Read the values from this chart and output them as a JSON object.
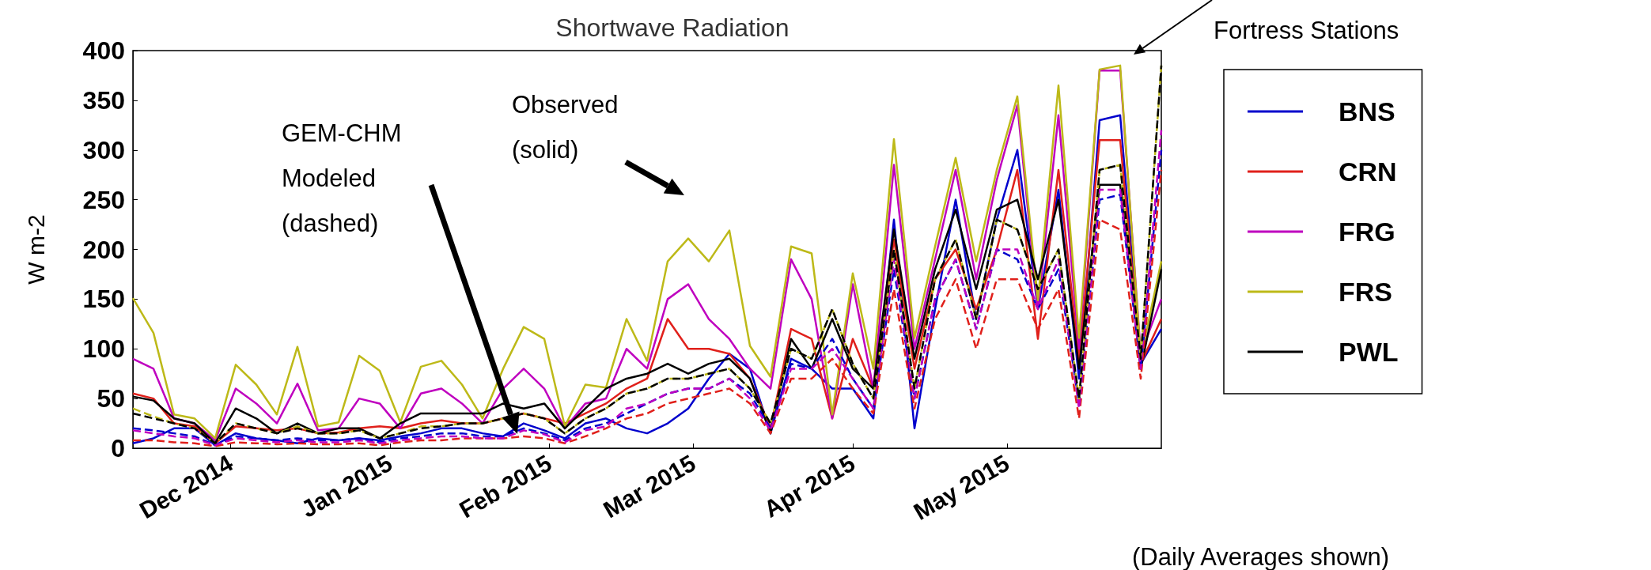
{
  "chart_data": {
    "type": "line",
    "title": "Shortwave Radiation",
    "ylabel": "W m-2",
    "annotations": [
      "GEM-CHM\nModeled\n(dashed)",
      "Observed\n(solid)",
      "Fortress Stations",
      "(Daily Averages shown)"
    ],
    "x": [
      "2014-11-12",
      "2014-11-16",
      "2014-11-20",
      "2014-11-24",
      "2014-11-28",
      "2014-12-02",
      "2014-12-06",
      "2014-12-10",
      "2014-12-14",
      "2014-12-18",
      "2014-12-22",
      "2014-12-26",
      "2014-12-30",
      "2015-01-03",
      "2015-01-07",
      "2015-01-11",
      "2015-01-15",
      "2015-01-19",
      "2015-01-23",
      "2015-01-27",
      "2015-01-31",
      "2015-02-04",
      "2015-02-08",
      "2015-02-12",
      "2015-02-16",
      "2015-02-20",
      "2015-02-24",
      "2015-02-28",
      "2015-03-04",
      "2015-03-08",
      "2015-03-12",
      "2015-03-16",
      "2015-03-20",
      "2015-03-24",
      "2015-03-28",
      "2015-04-01",
      "2015-04-05",
      "2015-04-09",
      "2015-04-13",
      "2015-04-17",
      "2015-04-21",
      "2015-04-25",
      "2015-04-29",
      "2015-05-03",
      "2015-05-07",
      "2015-05-11",
      "2015-05-15",
      "2015-05-19",
      "2015-05-23",
      "2015-05-27",
      "2015-05-31"
    ],
    "series": [
      {
        "name": "BNS",
        "color": "#0000cc",
        "line_style": "solid",
        "values": [
          5,
          10,
          20,
          20,
          3,
          15,
          10,
          8,
          5,
          10,
          8,
          10,
          8,
          12,
          15,
          20,
          20,
          15,
          12,
          25,
          18,
          10,
          25,
          30,
          20,
          15,
          25,
          40,
          70,
          95,
          80,
          15,
          90,
          80,
          60,
          60,
          30,
          230,
          20,
          140,
          250,
          130,
          230,
          300,
          140,
          260,
          70,
          330,
          335,
          85,
          120
        ]
      },
      {
        "name": "CRN",
        "color": "#e0201b",
        "line_style": "solid",
        "values": [
          55,
          50,
          25,
          22,
          5,
          22,
          20,
          18,
          20,
          15,
          16,
          20,
          22,
          20,
          25,
          28,
          25,
          25,
          30,
          35,
          30,
          25,
          35,
          45,
          60,
          70,
          130,
          100,
          100,
          95,
          70,
          20,
          120,
          110,
          30,
          110,
          60,
          210,
          80,
          170,
          200,
          140,
          200,
          280,
          110,
          280,
          90,
          310,
          310,
          85,
          130
        ]
      },
      {
        "name": "FRG",
        "color": "#bf00bf",
        "line_style": "solid",
        "values": [
          90,
          80,
          30,
          25,
          8,
          60,
          45,
          25,
          65,
          18,
          20,
          50,
          45,
          20,
          55,
          60,
          45,
          25,
          60,
          80,
          60,
          20,
          45,
          50,
          100,
          80,
          150,
          165,
          130,
          110,
          80,
          60,
          190,
          150,
          30,
          165,
          60,
          285,
          100,
          190,
          280,
          170,
          270,
          345,
          140,
          335,
          100,
          380,
          380,
          95,
          150
        ]
      },
      {
        "name": "FRS",
        "color": "#bdb918",
        "line_style": "solid",
        "values": [
          151,
          116,
          34,
          30,
          10,
          84,
          64,
          34,
          102,
          22,
          26,
          93,
          78,
          26,
          82,
          88,
          64,
          30,
          80,
          122,
          110,
          22,
          64,
          61,
          130,
          88,
          188,
          211,
          188,
          219,
          103,
          72,
          203,
          196,
          34,
          176,
          80,
          311,
          111,
          203,
          292,
          188,
          280,
          354,
          149,
          365,
          111,
          381,
          385,
          91,
          188
        ]
      },
      {
        "name": "PWL",
        "color": "#000000",
        "line_style": "solid",
        "values": [
          52,
          48,
          30,
          25,
          5,
          40,
          30,
          15,
          25,
          15,
          20,
          20,
          10,
          25,
          35,
          35,
          35,
          35,
          45,
          40,
          45,
          20,
          40,
          60,
          70,
          75,
          85,
          75,
          85,
          90,
          70,
          15,
          110,
          80,
          130,
          80,
          60,
          220,
          90,
          180,
          240,
          160,
          240,
          250,
          170,
          250,
          80,
          265,
          265,
          80,
          180
        ]
      },
      {
        "color": "#0000cc",
        "line_style": "dashed",
        "values": [
          20,
          18,
          15,
          12,
          3,
          12,
          10,
          8,
          10,
          8,
          8,
          10,
          6,
          10,
          12,
          15,
          15,
          12,
          12,
          20,
          15,
          8,
          20,
          25,
          35,
          45,
          55,
          60,
          60,
          70,
          55,
          20,
          85,
          80,
          110,
          70,
          40,
          180,
          50,
          150,
          190,
          120,
          200,
          190,
          140,
          180,
          45,
          250,
          255,
          80,
          300
        ]
      },
      {
        "color": "#e0201b",
        "line_style": "dashed",
        "values": [
          8,
          8,
          6,
          5,
          2,
          6,
          5,
          4,
          5,
          4,
          4,
          5,
          3,
          6,
          8,
          8,
          10,
          10,
          10,
          12,
          10,
          5,
          12,
          20,
          30,
          35,
          45,
          50,
          55,
          60,
          45,
          15,
          70,
          70,
          90,
          60,
          35,
          160,
          40,
          130,
          170,
          100,
          170,
          170,
          120,
          160,
          30,
          230,
          220,
          70,
          280
        ]
      },
      {
        "color": "#bf00bf",
        "line_style": "dashed",
        "values": [
          18,
          15,
          12,
          10,
          3,
          10,
          8,
          6,
          8,
          6,
          6,
          8,
          5,
          8,
          10,
          12,
          12,
          10,
          10,
          18,
          14,
          6,
          18,
          22,
          40,
          45,
          55,
          60,
          60,
          70,
          50,
          18,
          80,
          80,
          100,
          70,
          40,
          190,
          50,
          150,
          190,
          120,
          200,
          200,
          140,
          190,
          40,
          260,
          260,
          80,
          320
        ]
      },
      {
        "color": "#bdb918",
        "line_style": "dashed",
        "values": [
          40,
          32,
          25,
          20,
          5,
          25,
          20,
          15,
          22,
          15,
          15,
          18,
          10,
          15,
          22,
          22,
          25,
          25,
          30,
          35,
          30,
          15,
          30,
          40,
          55,
          60,
          70,
          70,
          75,
          80,
          60,
          25,
          100,
          90,
          140,
          85,
          50,
          200,
          60,
          170,
          210,
          130,
          230,
          220,
          160,
          200,
          50,
          280,
          285,
          90,
          385
        ]
      },
      {
        "color": "#000000",
        "line_style": "dashed",
        "values": [
          35,
          30,
          25,
          20,
          5,
          25,
          20,
          15,
          20,
          15,
          15,
          18,
          10,
          15,
          20,
          22,
          25,
          25,
          30,
          35,
          30,
          15,
          30,
          40,
          55,
          60,
          70,
          70,
          75,
          80,
          60,
          25,
          100,
          90,
          140,
          85,
          50,
          200,
          60,
          170,
          210,
          130,
          230,
          220,
          160,
          200,
          50,
          280,
          285,
          90,
          385
        ]
      }
    ],
    "xlim": [
      "2014-11-12",
      "2015-05-31"
    ],
    "xticks": [
      {
        "value": "2014-12-01",
        "label": "Dec 2014"
      },
      {
        "value": "2015-01-01",
        "label": "Jan 2015"
      },
      {
        "value": "2015-02-01",
        "label": "Feb 2015"
      },
      {
        "value": "2015-03-01",
        "label": "Mar 2015"
      },
      {
        "value": "2015-04-01",
        "label": "Apr 2015"
      },
      {
        "value": "2015-05-01",
        "label": "May 2015"
      }
    ],
    "ylim": [
      0,
      400
    ],
    "yticks": [
      0,
      50,
      100,
      150,
      200,
      250,
      300,
      350,
      400
    ],
    "grid": false,
    "legend": "right",
    "marker": "none"
  }
}
